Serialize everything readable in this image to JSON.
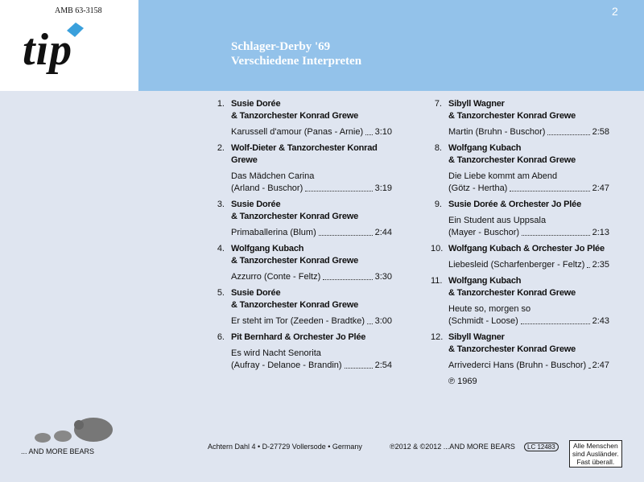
{
  "header": {
    "catalog": "AMB 63-3158",
    "logo": "tip",
    "page_number": "2",
    "title": "Schlager-Derby '69",
    "subtitle": "Verschiedene Interpreten"
  },
  "tracks": [
    {
      "number": "1.",
      "artist": [
        "Susie Dorée",
        "& Tanzorchester Konrad Grewe"
      ],
      "song": [
        "Karussell d'amour (Panas - Arnie)"
      ],
      "duration": "3:10"
    },
    {
      "number": "2.",
      "artist": [
        "Wolf-Dieter & Tanzorchester Konrad Grewe"
      ],
      "song": [
        "Das Mädchen Carina",
        "(Arland - Buschor)"
      ],
      "duration": "3:19"
    },
    {
      "number": "3.",
      "artist": [
        "Susie Dorée",
        "& Tanzorchester Konrad Grewe"
      ],
      "song": [
        "Primaballerina (Blum)"
      ],
      "duration": "2:44"
    },
    {
      "number": "4.",
      "artist": [
        "Wolfgang Kubach",
        "& Tanzorchester Konrad Grewe"
      ],
      "song": [
        "Azzurro (Conte - Feltz)"
      ],
      "duration": "3:30"
    },
    {
      "number": "5.",
      "artist": [
        "Susie Dorée",
        "& Tanzorchester Konrad Grewe"
      ],
      "song": [
        "Er steht im Tor (Zeeden - Bradtke)"
      ],
      "duration": "3:00"
    },
    {
      "number": "6.",
      "artist": [
        "Pit Bernhard & Orchester Jo Plée"
      ],
      "song": [
        "Es wird Nacht Senorita",
        "(Aufray - Delanoe - Brandin)"
      ],
      "duration": "2:54"
    },
    {
      "number": "7.",
      "artist": [
        "Sibyll Wagner",
        "& Tanzorchester Konrad Grewe"
      ],
      "song": [
        "Martin (Bruhn - Buschor)"
      ],
      "duration": "2:58"
    },
    {
      "number": "8.",
      "artist": [
        "Wolfgang Kubach",
        "& Tanzorchester Konrad Grewe"
      ],
      "song": [
        "Die Liebe kommt am Abend",
        "(Götz - Hertha)"
      ],
      "duration": "2:47"
    },
    {
      "number": "9.",
      "artist": [
        "Susie Dorée & Orchester Jo Plée"
      ],
      "song": [
        "Ein Student aus Uppsala",
        "(Mayer - Buschor)"
      ],
      "duration": "2:13"
    },
    {
      "number": "10.",
      "artist": [
        "Wolfgang Kubach & Orchester Jo Plée"
      ],
      "song": [
        "Liebesleid (Scharfenberger - Feltz)"
      ],
      "duration": "2:35"
    },
    {
      "number": "11.",
      "artist": [
        "Wolfgang Kubach",
        "& Tanzorchester Konrad Grewe"
      ],
      "song": [
        "Heute so, morgen so",
        "(Schmidt - Loose)"
      ],
      "duration": "2:43"
    },
    {
      "number": "12.",
      "artist": [
        "Sibyll Wagner",
        "& Tanzorchester Konrad Grewe"
      ],
      "song": [
        "Arrivederci Hans (Bruhn - Buschor)"
      ],
      "duration": "2:47"
    }
  ],
  "phonogram": "℗ 1969",
  "footer": {
    "label": "... AND MORE BEARS",
    "address": "Achtern Dahl 4 • D-27729 Vollersode • Germany",
    "copyright": "℗2012 & ©2012 ...AND MORE BEARS",
    "lc": "LC 12483",
    "slogan": [
      "Alle Menschen",
      "sind Ausländer.",
      "Fast überall."
    ]
  }
}
